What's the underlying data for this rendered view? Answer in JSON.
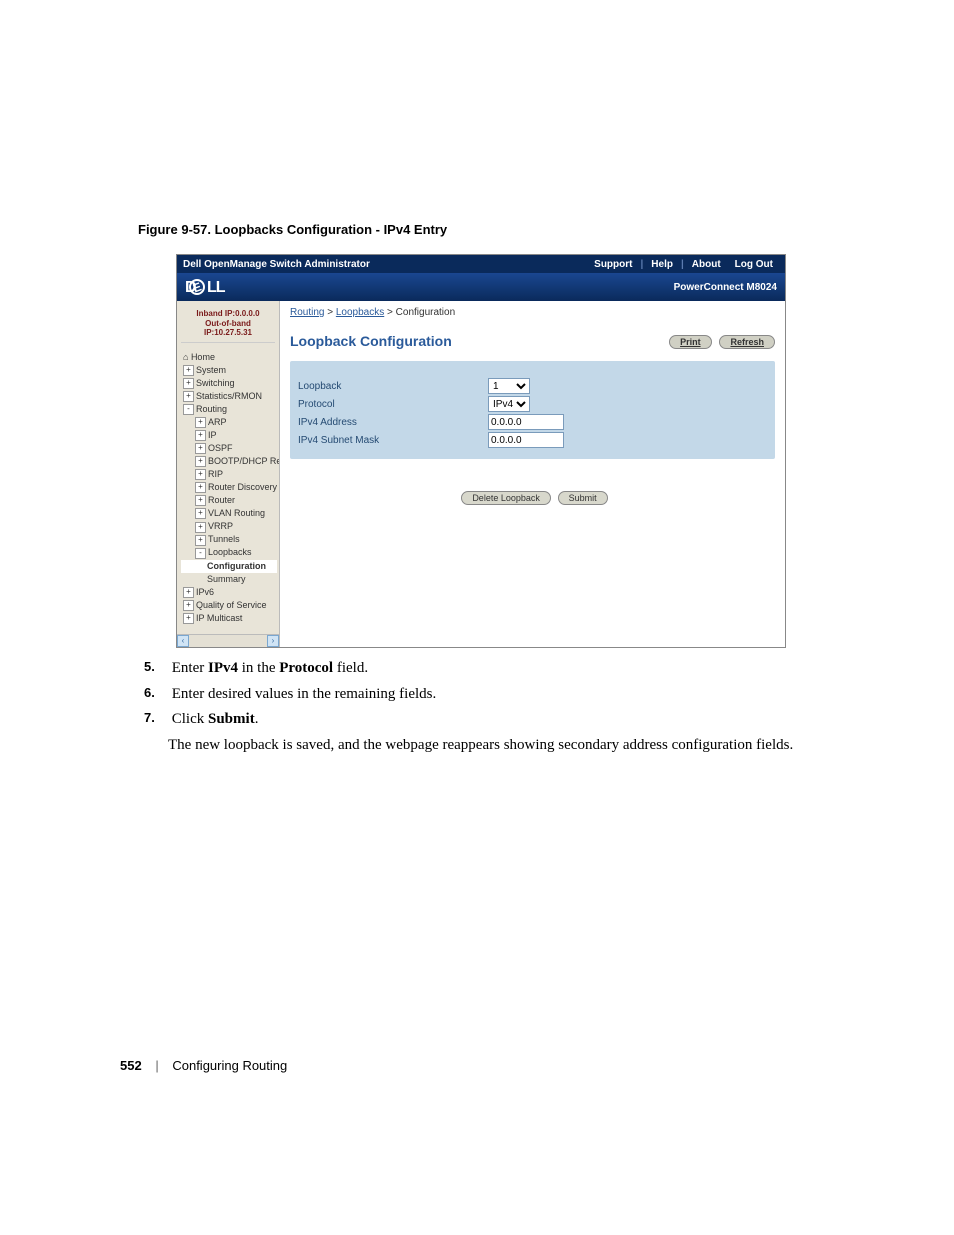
{
  "figure_caption": "Figure 9-57.    Loopbacks Configuration - IPv4 Entry",
  "topbar": {
    "title": "Dell OpenManage Switch Administrator",
    "links": [
      "Support",
      "Help",
      "About",
      "Log Out"
    ]
  },
  "brand": {
    "logo_text": "DELL",
    "model": "PowerConnect M8024"
  },
  "sidebar": {
    "ip_line1": "Inband IP:0.0.0.0",
    "ip_line2": "Out-of-band IP:10.27.5.31",
    "items": [
      {
        "label": "Home",
        "level": 0,
        "exp": ""
      },
      {
        "label": "System",
        "level": 0,
        "exp": "+"
      },
      {
        "label": "Switching",
        "level": 0,
        "exp": "+"
      },
      {
        "label": "Statistics/RMON",
        "level": 0,
        "exp": "+"
      },
      {
        "label": "Routing",
        "level": 0,
        "exp": "-"
      },
      {
        "label": "ARP",
        "level": 1,
        "exp": "+"
      },
      {
        "label": "IP",
        "level": 1,
        "exp": "+"
      },
      {
        "label": "OSPF",
        "level": 1,
        "exp": "+"
      },
      {
        "label": "BOOTP/DHCP Relay Ag",
        "level": 1,
        "exp": "+"
      },
      {
        "label": "RIP",
        "level": 1,
        "exp": "+"
      },
      {
        "label": "Router Discovery",
        "level": 1,
        "exp": "+"
      },
      {
        "label": "Router",
        "level": 1,
        "exp": "+"
      },
      {
        "label": "VLAN Routing",
        "level": 1,
        "exp": "+"
      },
      {
        "label": "VRRP",
        "level": 1,
        "exp": "+"
      },
      {
        "label": "Tunnels",
        "level": 1,
        "exp": "+"
      },
      {
        "label": "Loopbacks",
        "level": 1,
        "exp": "-"
      },
      {
        "label": "Configuration",
        "level": 2,
        "exp": "",
        "current": true
      },
      {
        "label": "Summary",
        "level": 2,
        "exp": ""
      },
      {
        "label": "IPv6",
        "level": 0,
        "exp": "+"
      },
      {
        "label": "Quality of Service",
        "level": 0,
        "exp": "+"
      },
      {
        "label": "IP Multicast",
        "level": 0,
        "exp": "+"
      }
    ]
  },
  "breadcrumb": {
    "a1": "Routing",
    "a2": "Loopbacks",
    "last": "Configuration",
    "sep": ">"
  },
  "panel": {
    "title": "Loopback Configuration",
    "print": "Print",
    "refresh": "Refresh",
    "rows": {
      "loopback_label": "Loopback",
      "loopback_value": "1",
      "protocol_label": "Protocol",
      "protocol_value": "IPv4",
      "ipv4addr_label": "IPv4 Address",
      "ipv4addr_value": "0.0.0.0",
      "ipv4mask_label": "IPv4 Subnet Mask",
      "ipv4mask_value": "0.0.0.0"
    },
    "delete_btn": "Delete Loopback",
    "submit_btn": "Submit"
  },
  "steps": {
    "s5_num": "5.",
    "s5_txt_a": "Enter ",
    "s5_txt_b": "IPv4",
    "s5_txt_c": " in the ",
    "s5_txt_d": "Protocol",
    "s5_txt_e": " field.",
    "s6_num": "6.",
    "s6_txt": "Enter desired values in the remaining fields.",
    "s7_num": "7.",
    "s7_txt_a": "Click ",
    "s7_txt_b": "Submit",
    "s7_txt_c": ".",
    "s7_follow": "The new loopback is saved, and the webpage reappears showing secondary address configuration fields."
  },
  "footer": {
    "page": "552",
    "section": "Configuring Routing"
  },
  "colors": {
    "topbar_bg": "#0a2a5b",
    "brand_grad_top": "#1a4791",
    "brand_grad_bot": "#0a2a5b",
    "sidebar_bg": "#e8e4d8",
    "panel_bg": "#c3d8e8",
    "link": "#2a5a9a"
  }
}
